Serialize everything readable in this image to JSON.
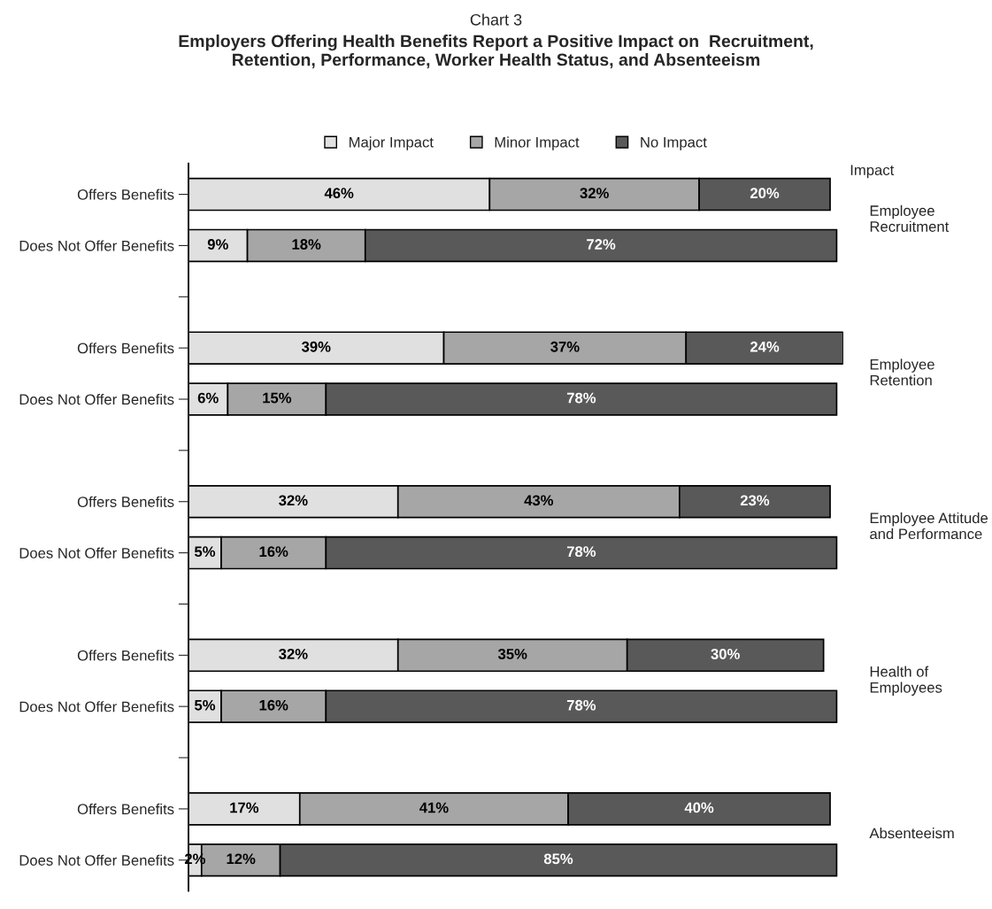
{
  "chart_data": {
    "type": "bar",
    "orientation": "horizontal",
    "stacked": true,
    "title": "Chart 3",
    "subtitle": "Employers Offering Health Benefits Report a Positive Impact on  Recruitment,\nRetention, Performance, Worker Health Status, and Absenteeism",
    "categories": [
      "Offers Benefits",
      "Does Not Offer Benefits",
      null,
      "Offers Benefits",
      "Does Not Offer Benefits",
      null,
      "Offers Benefits",
      "Does Not Offer Benefits",
      null,
      "Offers Benefits",
      "Does Not Offer Benefits",
      null,
      "Offers Benefits",
      "Does Not Offer Benefits"
    ],
    "xlim": [
      0,
      100
    ],
    "tick_labels": "y",
    "legend": "top",
    "grid": false,
    "series": [
      {
        "name": "Major Impact",
        "color": "#e0e0e0",
        "values": [
          46,
          9,
          null,
          39,
          6,
          null,
          32,
          5,
          null,
          32,
          5,
          null,
          17,
          2
        ],
        "value_labels": [
          "46%",
          "9%",
          null,
          "39%",
          "6%",
          null,
          "32%",
          "5%",
          null,
          "32%",
          "5%",
          null,
          "17%",
          "2%"
        ]
      },
      {
        "name": "Minor Impact",
        "color": "#a6a6a6",
        "values": [
          32,
          18,
          null,
          37,
          15,
          null,
          43,
          16,
          null,
          35,
          16,
          null,
          41,
          12
        ],
        "value_labels": [
          "32%",
          "18%",
          null,
          "37%",
          "15%",
          null,
          "43%",
          "16%",
          null,
          "35%",
          "16%",
          null,
          "41%",
          "12%"
        ]
      },
      {
        "name": "No Impact",
        "color": "#595959",
        "values": [
          20,
          72,
          null,
          24,
          78,
          null,
          23,
          78,
          null,
          30,
          78,
          null,
          40,
          85
        ],
        "value_labels": [
          "20%",
          "72%",
          null,
          "24%",
          "78%",
          null,
          "23%",
          "78%",
          null,
          "30%",
          "78%",
          null,
          "40%",
          "85%"
        ]
      }
    ],
    "annotations": [
      "Impact",
      "Employee\nRecruitment",
      "Employee\nRetention",
      "Employee Attitude\nand Performance",
      "Health of\nEmployees",
      "Absenteeism"
    ]
  }
}
